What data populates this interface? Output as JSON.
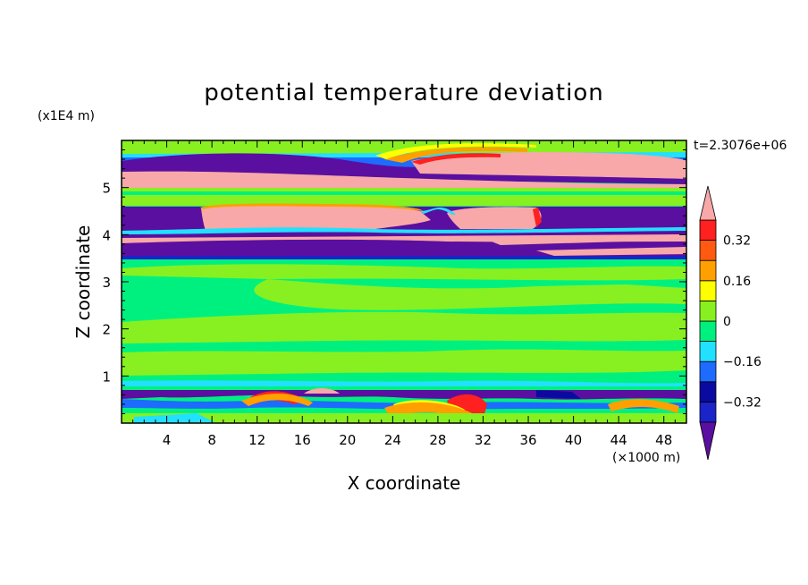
{
  "chart_data": {
    "type": "heatmap",
    "title": "potential temperature deviation",
    "time_label": "t=2.3076e+06",
    "xlabel": "X coordinate",
    "ylabel": "Z coordinate",
    "x_unit_label": "(×1000 m)",
    "y_unit_label": "(x1E4 m)",
    "xlim": [
      0,
      50
    ],
    "ylim": [
      0,
      6
    ],
    "x_ticks": [
      "4",
      "8",
      "12",
      "16",
      "20",
      "24",
      "28",
      "32",
      "36",
      "40",
      "44",
      "48"
    ],
    "y_ticks": [
      "1",
      "2",
      "3",
      "4",
      "5"
    ],
    "colorbar": {
      "tick_labels": [
        "0.32",
        "0.16",
        "0",
        "−0.16",
        "−0.32"
      ],
      "tick_values": [
        0.32,
        0.16,
        0,
        -0.16,
        -0.32
      ],
      "levels": [
        -0.4,
        -0.32,
        -0.24,
        -0.16,
        -0.08,
        0,
        0.08,
        0.16,
        0.24,
        0.32,
        0.4
      ],
      "colors": [
        "#5a0fa0",
        "#1a24c8",
        "#0a0aa0",
        "#1e6cff",
        "#22e0ff",
        "#00f080",
        "#88f020",
        "#ffff00",
        "#ffa000",
        "#ff5a10",
        "#ff2020",
        "#f8a8a8"
      ],
      "extend": "both"
    },
    "bands": [
      {
        "z": [
          5.5,
          6.0
        ],
        "value": "0 to 0.08"
      },
      {
        "z": [
          5.2,
          5.5
        ],
        "value": "< -0.4"
      },
      {
        "z": [
          4.95,
          5.2
        ],
        "value": "> 0.4"
      },
      {
        "z": [
          4.6,
          4.95
        ],
        "value": "0.08 to 0.16"
      },
      {
        "z": [
          4.2,
          4.6
        ],
        "value": "< -0.4 / > 0.4"
      },
      {
        "z": [
          3.5,
          4.2
        ],
        "value": "< -0.4 / > 0.4"
      },
      {
        "z": [
          0.7,
          3.5
        ],
        "value": "-0.08 to 0.16"
      },
      {
        "z": [
          0.0,
          0.7
        ],
        "value": "-0.4 to 0.4"
      }
    ]
  }
}
